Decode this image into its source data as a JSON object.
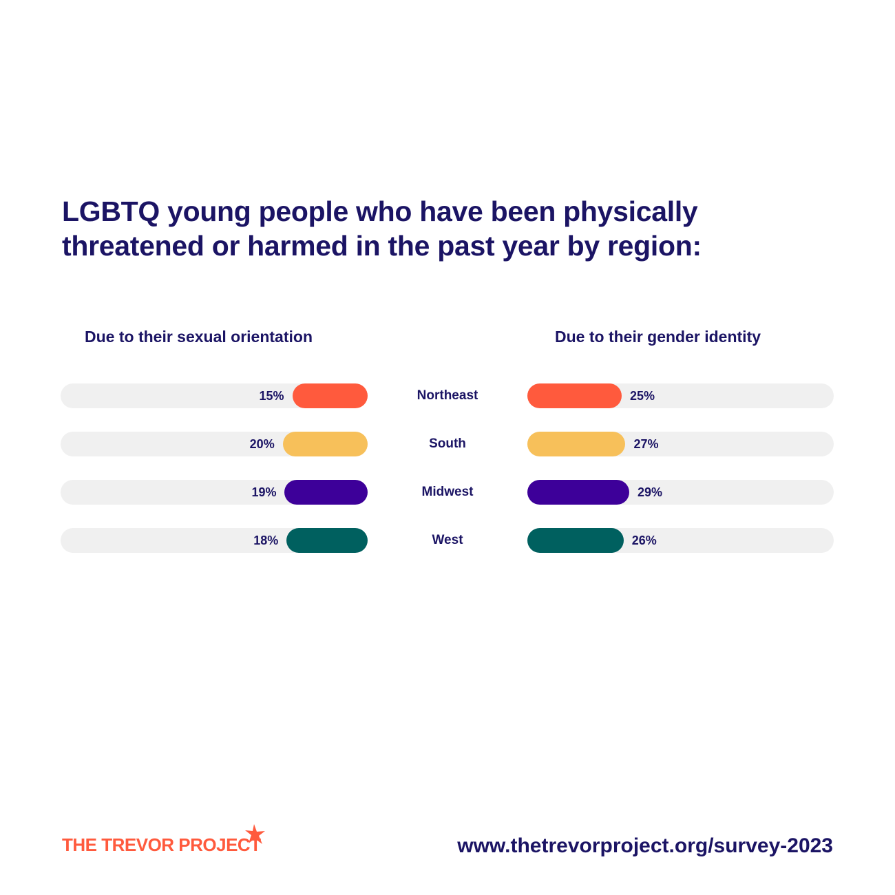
{
  "title": "LGBTQ young people who have been physically threatened or harmed in the past year by region:",
  "chart_data": {
    "type": "bar",
    "categories": [
      "Northeast",
      "South",
      "Midwest",
      "West"
    ],
    "series": [
      {
        "name": "Due to their sexual orientation",
        "values": [
          15,
          20,
          19,
          18
        ]
      },
      {
        "name": "Due to their gender identity",
        "values": [
          25,
          27,
          29,
          26
        ]
      }
    ],
    "labels_left": [
      "15%",
      "20%",
      "19%",
      "18%"
    ],
    "labels_right": [
      "25%",
      "27%",
      "29%",
      "26%"
    ],
    "colors": [
      "#ff5a3d",
      "#f7c05a",
      "#3d0099",
      "#00605f"
    ],
    "track_color": "#f0f0f0",
    "text_color": "#1b1464",
    "ylim": [
      0,
      100
    ]
  },
  "footer": {
    "logo_text": "THE TREVOR PROJECT",
    "logo_icon": "star-icon",
    "url": "www.thetrevorproject.org/survey-2023"
  }
}
